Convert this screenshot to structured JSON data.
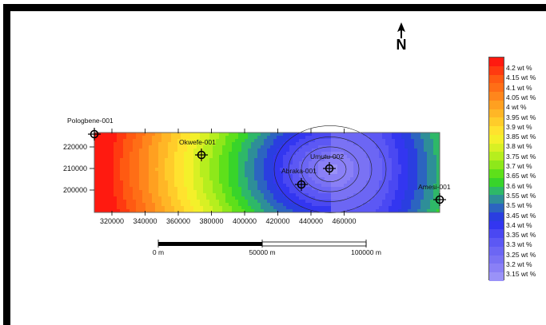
{
  "north_label": "N",
  "map": {
    "x_axis": {
      "ticks": [
        320000,
        340000,
        360000,
        380000,
        400000,
        420000,
        440000,
        460000
      ]
    },
    "y_axis": {
      "ticks": [
        220000,
        210000,
        200000
      ]
    },
    "wells": [
      {
        "name": "Pologbene-001"
      },
      {
        "name": "Okwefe-001"
      },
      {
        "name": "Umutu-002"
      },
      {
        "name": "Abraka-001"
      },
      {
        "name": "Amesi-001"
      }
    ]
  },
  "scale_bar": {
    "labels": [
      "0 m",
      "50000 m",
      "100000 m"
    ]
  },
  "legend": {
    "colors": [
      "#ff1a10",
      "#ff3a10",
      "#ff5a12",
      "#ff6e16",
      "#ff861c",
      "#ffa020",
      "#ffb626",
      "#ffcc2a",
      "#ffe22e",
      "#f4f02a",
      "#d8f024",
      "#b6ee1e",
      "#8ee81a",
      "#5ee01a",
      "#38d42a",
      "#2eb868",
      "#2e8e98",
      "#2c64c0",
      "#2a3ee0",
      "#3336f0",
      "#4a48f2",
      "#5c58f4",
      "#6c66f4",
      "#7a72f4",
      "#8a80f6",
      "#9a92f8"
    ],
    "labels": [
      "4.2 wt %",
      "4.15 wt %",
      "4.1 wt %",
      "4.05 wt %",
      "4 wt %",
      "3.95 wt %",
      "3.9 wt %",
      "3.85 wt %",
      "3.8 wt %",
      "3.75 wt %",
      "3.7 wt %",
      "3.65 wt %",
      "3.6 wt %",
      "3.55 wt %",
      "3.5 wt %",
      "3.45 wt %",
      "3.4 wt %",
      "3.35 wt %",
      "3.3 wt %",
      "3.25 wt %",
      "3.2 wt %",
      "3.15 wt %"
    ]
  }
}
